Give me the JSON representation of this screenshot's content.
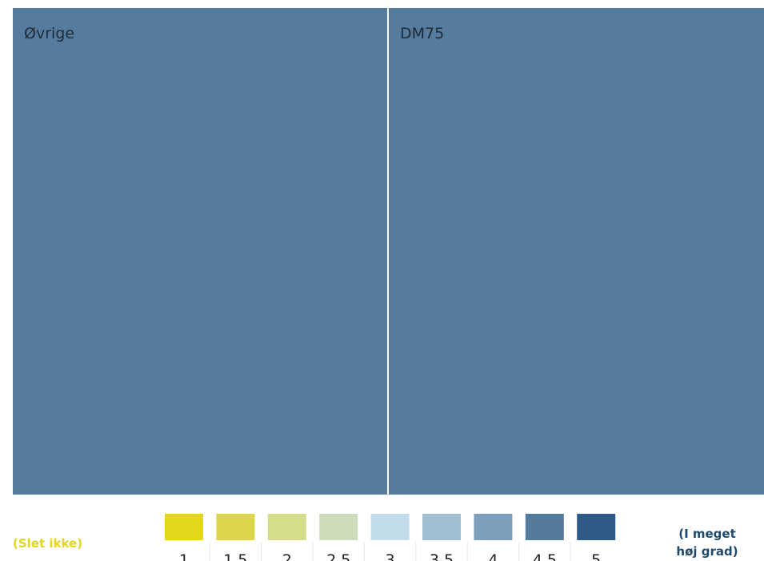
{
  "chart_data": {
    "type": "treemap",
    "tiles": [
      {
        "label": "Øvrige",
        "value": 4.4,
        "size_share": 0.5
      },
      {
        "label": "DM75",
        "value": 4.4,
        "size_share": 0.5
      }
    ],
    "color_scale": {
      "low_label": "(Slet ikke)",
      "high_label": "(I meget høj grad)",
      "low_label_color": "#e2d61e",
      "high_label_color": "#1f4a6b",
      "steps": [
        {
          "label": "1",
          "value": 1,
          "color": "#e3d61c"
        },
        {
          "label": "1.5",
          "value": 1.5,
          "color": "#dbd64a"
        },
        {
          "label": "2",
          "value": 2,
          "color": "#d5dc8a"
        },
        {
          "label": "2.5",
          "value": 2.5,
          "color": "#cddcba"
        },
        {
          "label": "3",
          "value": 3,
          "color": "#c3dcea"
        },
        {
          "label": "3.5",
          "value": 3.5,
          "color": "#a2bed3"
        },
        {
          "label": "4",
          "value": 4,
          "color": "#7d9fbc"
        },
        {
          "label": "4.5",
          "value": 4.5,
          "color": "#547a9e"
        },
        {
          "label": "5",
          "value": 5,
          "color": "#2e5a87"
        }
      ]
    }
  },
  "tile_fill": "#557b9f",
  "divider_color": "#ffffff"
}
